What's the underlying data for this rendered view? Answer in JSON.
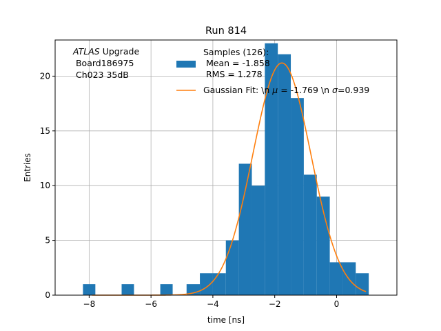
{
  "chart_data": {
    "type": "histogram",
    "title": "Run 814",
    "xlabel": "time [ns]",
    "ylabel": "Entries",
    "xlim": [
      -9.1,
      1.95
    ],
    "ylim": [
      0,
      23.3
    ],
    "xticks": [
      -8,
      -6,
      -4,
      -2,
      0
    ],
    "xtick_labels": [
      "−8",
      "−6",
      "−4",
      "−2",
      "0"
    ],
    "yticks": [
      0,
      5,
      10,
      15,
      20
    ],
    "ytick_labels": [
      "0",
      "5",
      "10",
      "15",
      "20"
    ],
    "grid": true,
    "annotation": {
      "italic": "ATLAS",
      "rest": " Upgrade",
      "line2": " Board186975",
      "line3": " Ch023 35dB"
    },
    "legend": {
      "placement": "top-center",
      "bars_title": "Samples (126):",
      "bars_mean": " Mean = -1.858",
      "bars_rms": " RMS = 1.278",
      "fit_label_prefix": "Gaussian Fit: \\n ",
      "fit_mu_symbol": "μ",
      "fit_label_mid": " = -1.769 \\n ",
      "fit_sigma_symbol": "σ",
      "fit_label_suffix": "=0.939"
    },
    "bar_color": "#1f77b4",
    "fit_color": "#ff7f0e",
    "bins": [
      {
        "x0": -8.2,
        "x1": -7.8,
        "count": 1
      },
      {
        "x0": -6.95,
        "x1": -6.55,
        "count": 1
      },
      {
        "x0": -5.7,
        "x1": -5.3,
        "count": 1
      },
      {
        "x0": -4.85,
        "x1": -4.42,
        "count": 1
      },
      {
        "x0": -4.42,
        "x1": -4.0,
        "count": 2
      },
      {
        "x0": -4.0,
        "x1": -3.58,
        "count": 2
      },
      {
        "x0": -3.58,
        "x1": -3.16,
        "count": 5
      },
      {
        "x0": -3.16,
        "x1": -2.74,
        "count": 12
      },
      {
        "x0": -2.74,
        "x1": -2.32,
        "count": 10
      },
      {
        "x0": -2.32,
        "x1": -1.9,
        "count": 23
      },
      {
        "x0": -1.9,
        "x1": -1.48,
        "count": 22
      },
      {
        "x0": -1.48,
        "x1": -1.06,
        "count": 18
      },
      {
        "x0": -1.06,
        "x1": -0.64,
        "count": 11
      },
      {
        "x0": -0.64,
        "x1": -0.22,
        "count": 9
      },
      {
        "x0": -0.22,
        "x1": 0.2,
        "count": 3
      },
      {
        "x0": 0.2,
        "x1": 0.62,
        "count": 3
      },
      {
        "x0": 0.62,
        "x1": 1.04,
        "count": 2
      }
    ],
    "fit": {
      "mu": -1.769,
      "sigma": 0.939,
      "amplitude": 21.2,
      "x_min": -7.9,
      "x_max": 0.95
    }
  }
}
